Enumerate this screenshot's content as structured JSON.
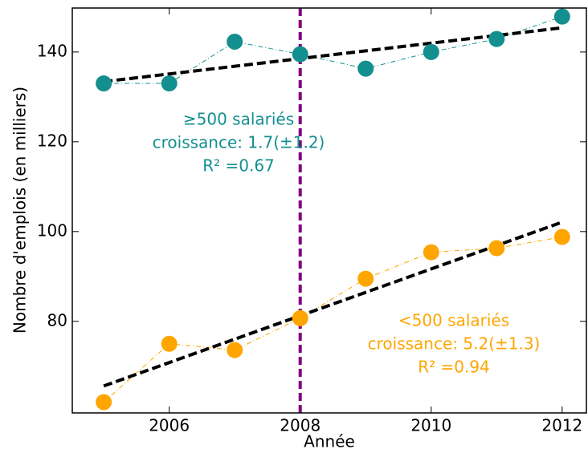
{
  "chart_data": {
    "type": "line",
    "xlabel": "Année",
    "ylabel": "Nombre d'emplois (en milliers)",
    "x": [
      2005,
      2006,
      2007,
      2008,
      2009,
      2010,
      2011,
      2012
    ],
    "series": [
      {
        "color": "#138f8f",
        "values": [
          133,
          133,
          142.3,
          139.5,
          136.3,
          140,
          142.9,
          147.9
        ]
      },
      {
        "color": "#ffa500",
        "values": [
          62,
          75,
          73.6,
          80.7,
          89.5,
          95.4,
          96.3,
          98.8
        ]
      }
    ],
    "trend_lines": [
      {
        "x": [
          2005,
          2012
        ],
        "values": [
          133.4,
          145.4
        ],
        "color": "#000000"
      },
      {
        "x": [
          2005,
          2012
        ],
        "values": [
          65.6,
          102.1
        ],
        "color": "#000000"
      }
    ],
    "vline": {
      "x": 2008,
      "color": "#800080"
    },
    "annotations": [
      {
        "lines": [
          "≥500 salariés",
          "croissance: 1.7(±1.2)",
          "R² =0.67"
        ],
        "color": "#138f8f"
      },
      {
        "lines": [
          "<500 salariés",
          "croissance: 5.2(±1.3)",
          "R² =0.94"
        ],
        "color": "#ffa500"
      }
    ],
    "xlim": [
      2004.52,
      2012.37
    ],
    "ylim": [
      59.6,
      149.8
    ],
    "xticks": [
      2006,
      2008,
      2010,
      2012
    ],
    "yticks": [
      80,
      100,
      120,
      140
    ]
  }
}
